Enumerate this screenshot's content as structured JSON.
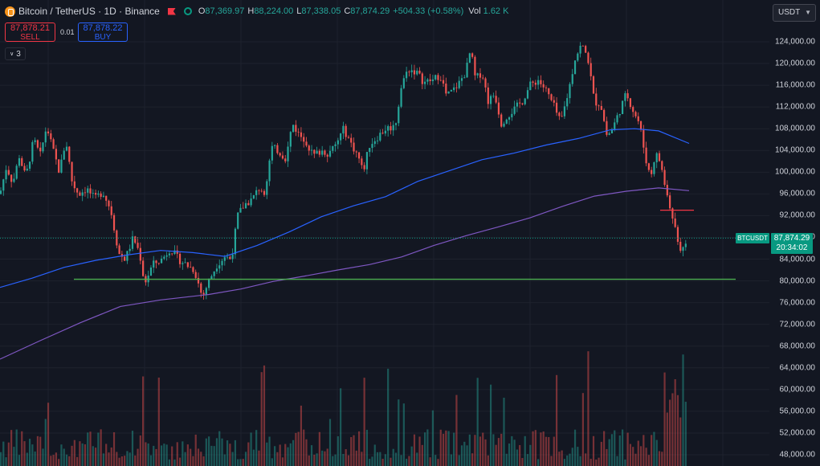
{
  "header": {
    "symbol": "Bitcoin / TetherUS · 1D · Binance",
    "ohlc": [
      {
        "key": "O",
        "value": "87,369.97"
      },
      {
        "key": "H",
        "value": "88,224.00"
      },
      {
        "key": "L",
        "value": "87,338.05"
      },
      {
        "key": "C",
        "value": "87,874.29"
      }
    ],
    "change": "+504.33 (+0.58%)",
    "volume_label": "Vol",
    "volume_value": "1.62 K"
  },
  "trade": {
    "sell_price": "87,878.21",
    "sell_label": "SELL",
    "spread": "0.01",
    "buy_price": "87,878.22",
    "buy_label": "BUY"
  },
  "indicators_count": "3",
  "currency_selector": "USDT",
  "price_label": {
    "symbol": "BTCUSDT",
    "price": "87,874.29",
    "countdown": "20:34:02"
  },
  "colors": {
    "background": "#131722",
    "up": "#26a69a",
    "down": "#ef5350",
    "ma_fast": "#2962ff",
    "ma_slow": "#7e57c2",
    "support": "#4caf50",
    "resistance": "#f23645"
  },
  "icons": [
    "bitcoin-logo-icon",
    "flag-icon",
    "market-status-icon",
    "chevron-down-icon"
  ],
  "chart_data": {
    "type": "candlestick",
    "y_ticks": [
      "124,000.00",
      "120,000.00",
      "116,000.00",
      "112,000.00",
      "108,000.00",
      "104,000.00",
      "100,000.00",
      "96,000.00",
      "92,000.00",
      "88,000.00",
      "84,000.00",
      "80,000.00",
      "76,000.00",
      "72,000.00",
      "68,000.00",
      "64,000.00",
      "60,000.00",
      "56,000.00",
      "52,000.00",
      "48,000.00"
    ],
    "ylim": [
      47000,
      128000
    ],
    "price_path": [
      [
        0,
        96000
      ],
      [
        8,
        101000
      ],
      [
        16,
        98000
      ],
      [
        24,
        103000
      ],
      [
        32,
        99000
      ],
      [
        42,
        106000
      ],
      [
        50,
        103000
      ],
      [
        58,
        108500
      ],
      [
        66,
        104000
      ],
      [
        74,
        100000
      ],
      [
        82,
        106000
      ],
      [
        90,
        98000
      ],
      [
        98,
        96000
      ],
      [
        108,
        97000
      ],
      [
        118,
        95000
      ],
      [
        128,
        96500
      ],
      [
        138,
        93000
      ],
      [
        148,
        85000
      ],
      [
        156,
        84000
      ],
      [
        166,
        88000
      ],
      [
        174,
        85000
      ],
      [
        180,
        79500
      ],
      [
        190,
        83000
      ],
      [
        202,
        84000
      ],
      [
        212,
        86000
      ],
      [
        222,
        84000
      ],
      [
        232,
        83000
      ],
      [
        242,
        82000
      ],
      [
        252,
        77000
      ],
      [
        260,
        80000
      ],
      [
        270,
        83000
      ],
      [
        280,
        84500
      ],
      [
        288,
        84000
      ],
      [
        296,
        92000
      ],
      [
        304,
        94000
      ],
      [
        314,
        95000
      ],
      [
        322,
        97000
      ],
      [
        330,
        96500
      ],
      [
        338,
        104500
      ],
      [
        346,
        104000
      ],
      [
        356,
        102500
      ],
      [
        364,
        109000
      ],
      [
        372,
        107000
      ],
      [
        380,
        106000
      ],
      [
        390,
        103000
      ],
      [
        400,
        104000
      ],
      [
        410,
        103500
      ],
      [
        418,
        105000
      ],
      [
        428,
        108000
      ],
      [
        438,
        105000
      ],
      [
        446,
        103000
      ],
      [
        452,
        100000
      ],
      [
        460,
        105000
      ],
      [
        470,
        106500
      ],
      [
        480,
        108000
      ],
      [
        492,
        108500
      ],
      [
        500,
        116000
      ],
      [
        508,
        119000
      ],
      [
        518,
        118500
      ],
      [
        528,
        116500
      ],
      [
        540,
        117000
      ],
      [
        548,
        118000
      ],
      [
        556,
        114000
      ],
      [
        564,
        115000
      ],
      [
        572,
        116500
      ],
      [
        580,
        118500
      ],
      [
        586,
        122500
      ],
      [
        592,
        117000
      ],
      [
        600,
        118500
      ],
      [
        608,
        113000
      ],
      [
        616,
        114500
      ],
      [
        624,
        109000
      ],
      [
        632,
        110500
      ],
      [
        640,
        111500
      ],
      [
        650,
        113000
      ],
      [
        660,
        116000
      ],
      [
        670,
        117000
      ],
      [
        680,
        115000
      ],
      [
        690,
        112000
      ],
      [
        698,
        109000
      ],
      [
        708,
        115000
      ],
      [
        716,
        121000
      ],
      [
        724,
        123500
      ],
      [
        732,
        121000
      ],
      [
        740,
        113000
      ],
      [
        748,
        112500
      ],
      [
        756,
        106500
      ],
      [
        764,
        108500
      ],
      [
        772,
        111500
      ],
      [
        780,
        114500
      ],
      [
        788,
        111500
      ],
      [
        796,
        109000
      ],
      [
        804,
        102500
      ],
      [
        810,
        99000
      ],
      [
        816,
        103500
      ],
      [
        822,
        102000
      ],
      [
        828,
        97500
      ],
      [
        834,
        93500
      ],
      [
        840,
        90500
      ],
      [
        846,
        86000
      ],
      [
        850,
        86500
      ],
      [
        856,
        87874
      ]
    ],
    "ma_fast_path": [
      [
        0,
        78800
      ],
      [
        40,
        80500
      ],
      [
        80,
        82500
      ],
      [
        120,
        83800
      ],
      [
        160,
        84800
      ],
      [
        200,
        85600
      ],
      [
        240,
        85200
      ],
      [
        280,
        84500
      ],
      [
        320,
        86500
      ],
      [
        360,
        89000
      ],
      [
        400,
        91800
      ],
      [
        440,
        93800
      ],
      [
        480,
        95500
      ],
      [
        520,
        98300
      ],
      [
        560,
        100300
      ],
      [
        600,
        102300
      ],
      [
        640,
        103500
      ],
      [
        680,
        105000
      ],
      [
        720,
        106200
      ],
      [
        760,
        107800
      ],
      [
        790,
        108000
      ],
      [
        820,
        107600
      ],
      [
        858,
        105300
      ]
    ],
    "ma_slow_path": [
      [
        0,
        65600
      ],
      [
        50,
        69000
      ],
      [
        100,
        72300
      ],
      [
        150,
        75300
      ],
      [
        200,
        76500
      ],
      [
        260,
        77500
      ],
      [
        300,
        78500
      ],
      [
        340,
        79900
      ],
      [
        380,
        80900
      ],
      [
        420,
        82000
      ],
      [
        460,
        83000
      ],
      [
        500,
        84400
      ],
      [
        540,
        86500
      ],
      [
        580,
        88300
      ],
      [
        620,
        89900
      ],
      [
        660,
        91600
      ],
      [
        700,
        93700
      ],
      [
        740,
        95600
      ],
      [
        780,
        96500
      ],
      [
        820,
        97100
      ],
      [
        858,
        96600
      ]
    ],
    "support_level": 80300,
    "resistance_level": 93000
  }
}
